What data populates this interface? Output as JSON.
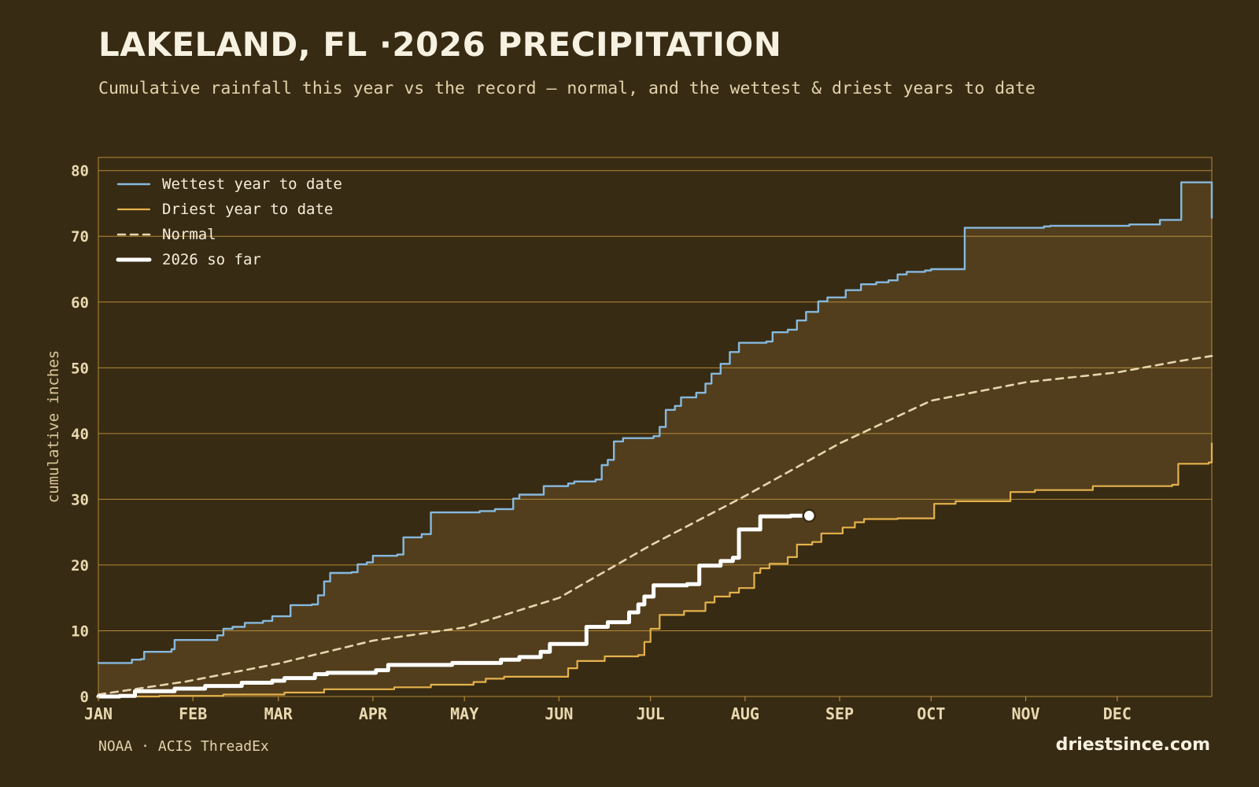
{
  "header": {
    "title": "LAKELAND, FL ·2026 PRECIPITATION",
    "subtitle": "Cumulative rainfall this year vs the record — normal, and the wettest & driest years to date"
  },
  "footer": {
    "source": "NOAA · ACIS ThreadEx",
    "site": "driestsince.com"
  },
  "colors": {
    "background": "#382b13",
    "band_fill": "#523e1d",
    "grid": "#b48a37",
    "wettest": "#86b9df",
    "driest": "#e5b24c",
    "normal": "#e6d6ad",
    "current": "#ffffff"
  },
  "chart_data": {
    "type": "line",
    "title": "LAKELAND, FL ·2026 PRECIPITATION",
    "xlabel": "",
    "ylabel": "cumulative inches",
    "x_unit": "day of year",
    "xlim": [
      1,
      366
    ],
    "ylim": [
      0,
      82
    ],
    "yticks": [
      0,
      10,
      20,
      30,
      40,
      50,
      60,
      70,
      80
    ],
    "xticks": [
      {
        "label": "JAN",
        "x": 1
      },
      {
        "label": "FEB",
        "x": 32
      },
      {
        "label": "MAR",
        "x": 60
      },
      {
        "label": "APR",
        "x": 91
      },
      {
        "label": "MAY",
        "x": 121
      },
      {
        "label": "JUN",
        "x": 152
      },
      {
        "label": "JUL",
        "x": 182
      },
      {
        "label": "AUG",
        "x": 213
      },
      {
        "label": "SEP",
        "x": 244
      },
      {
        "label": "OCT",
        "x": 274
      },
      {
        "label": "NOV",
        "x": 305
      },
      {
        "label": "DEC",
        "x": 335
      }
    ],
    "grid": true,
    "legend_position": "top-left",
    "shaded_band": "between driest and wettest year to date",
    "series": [
      {
        "name": "Wettest year to date",
        "style": "solid",
        "step": true,
        "points": [
          [
            1,
            5.1
          ],
          [
            11,
            5.1
          ],
          [
            12,
            5.6
          ],
          [
            15,
            5.7
          ],
          [
            16,
            6.8
          ],
          [
            23,
            6.8
          ],
          [
            25,
            7.2
          ],
          [
            26,
            8.6
          ],
          [
            36,
            8.6
          ],
          [
            40,
            9.3
          ],
          [
            42,
            10.3
          ],
          [
            45,
            10.6
          ],
          [
            49,
            11.2
          ],
          [
            55,
            11.5
          ],
          [
            58,
            12.2
          ],
          [
            64,
            13.9
          ],
          [
            71,
            14.0
          ],
          [
            73,
            15.4
          ],
          [
            75,
            17.5
          ],
          [
            77,
            18.8
          ],
          [
            84,
            18.9
          ],
          [
            86,
            20.1
          ],
          [
            89,
            20.4
          ],
          [
            91,
            21.4
          ],
          [
            99,
            21.6
          ],
          [
            101,
            24.2
          ],
          [
            107,
            24.7
          ],
          [
            110,
            28.0
          ],
          [
            126,
            28.2
          ],
          [
            131,
            28.5
          ],
          [
            137,
            30.1
          ],
          [
            139,
            30.7
          ],
          [
            147,
            32.0
          ],
          [
            155,
            32.4
          ],
          [
            157,
            32.7
          ],
          [
            164,
            33.0
          ],
          [
            166,
            35.2
          ],
          [
            168,
            36.0
          ],
          [
            170,
            38.8
          ],
          [
            173,
            39.3
          ],
          [
            183,
            39.6
          ],
          [
            185,
            41.0
          ],
          [
            187,
            43.6
          ],
          [
            190,
            44.2
          ],
          [
            192,
            45.5
          ],
          [
            197,
            46.2
          ],
          [
            200,
            47.6
          ],
          [
            202,
            49.1
          ],
          [
            205,
            50.6
          ],
          [
            208,
            52.4
          ],
          [
            211,
            53.8
          ],
          [
            220,
            54.0
          ],
          [
            222,
            55.4
          ],
          [
            227,
            55.8
          ],
          [
            230,
            57.2
          ],
          [
            233,
            58.5
          ],
          [
            237,
            60.1
          ],
          [
            240,
            60.7
          ],
          [
            246,
            61.8
          ],
          [
            251,
            62.7
          ],
          [
            256,
            63.0
          ],
          [
            260,
            63.3
          ],
          [
            263,
            64.2
          ],
          [
            266,
            64.6
          ],
          [
            272,
            64.8
          ],
          [
            274,
            65.0
          ],
          [
            285,
            71.3
          ],
          [
            311,
            71.5
          ],
          [
            313,
            71.6
          ],
          [
            339,
            71.8
          ],
          [
            349,
            72.5
          ],
          [
            356,
            78.2
          ],
          [
            365,
            78.2
          ],
          [
            366,
            72.8
          ]
        ]
      },
      {
        "name": "Driest year to date",
        "style": "solid",
        "step": true,
        "points": [
          [
            1,
            0.0
          ],
          [
            21,
            0.1
          ],
          [
            42,
            0.3
          ],
          [
            62,
            0.6
          ],
          [
            75,
            1.1
          ],
          [
            98,
            1.4
          ],
          [
            110,
            1.8
          ],
          [
            124,
            2.2
          ],
          [
            128,
            2.7
          ],
          [
            134,
            3.0
          ],
          [
            152,
            3.0
          ],
          [
            155,
            4.3
          ],
          [
            158,
            5.4
          ],
          [
            167,
            6.1
          ],
          [
            178,
            6.3
          ],
          [
            180,
            8.3
          ],
          [
            182,
            10.3
          ],
          [
            185,
            12.4
          ],
          [
            193,
            13.0
          ],
          [
            200,
            14.3
          ],
          [
            203,
            15.2
          ],
          [
            208,
            15.8
          ],
          [
            211,
            16.5
          ],
          [
            216,
            18.8
          ],
          [
            218,
            19.5
          ],
          [
            221,
            20.2
          ],
          [
            227,
            21.2
          ],
          [
            230,
            23.1
          ],
          [
            235,
            23.5
          ],
          [
            238,
            24.8
          ],
          [
            245,
            25.7
          ],
          [
            249,
            26.5
          ],
          [
            252,
            27.0
          ],
          [
            263,
            27.1
          ],
          [
            275,
            29.3
          ],
          [
            282,
            29.7
          ],
          [
            300,
            31.1
          ],
          [
            308,
            31.4
          ],
          [
            327,
            32.0
          ],
          [
            353,
            32.2
          ],
          [
            355,
            35.4
          ],
          [
            365,
            35.6
          ],
          [
            366,
            38.5
          ]
        ]
      },
      {
        "name": "Normal",
        "style": "dashed",
        "step": false,
        "points": [
          [
            1,
            0.3
          ],
          [
            30,
            2.3
          ],
          [
            60,
            5.0
          ],
          [
            91,
            8.5
          ],
          [
            121,
            10.5
          ],
          [
            152,
            15.0
          ],
          [
            182,
            23.0
          ],
          [
            213,
            30.5
          ],
          [
            244,
            38.5
          ],
          [
            274,
            45.0
          ],
          [
            305,
            47.8
          ],
          [
            335,
            49.3
          ],
          [
            355,
            51.0
          ],
          [
            366,
            51.8
          ]
        ]
      },
      {
        "name": "2026 so far",
        "style": "solid",
        "step": true,
        "points": [
          [
            1,
            0.0
          ],
          [
            8,
            0.1
          ],
          [
            13,
            0.8
          ],
          [
            26,
            1.2
          ],
          [
            36,
            1.6
          ],
          [
            48,
            2.1
          ],
          [
            58,
            2.4
          ],
          [
            62,
            2.8
          ],
          [
            72,
            3.4
          ],
          [
            76,
            3.6
          ],
          [
            92,
            4.0
          ],
          [
            96,
            4.8
          ],
          [
            117,
            5.1
          ],
          [
            133,
            5.6
          ],
          [
            139,
            6.0
          ],
          [
            146,
            6.8
          ],
          [
            149,
            8.0
          ],
          [
            161,
            10.6
          ],
          [
            168,
            11.3
          ],
          [
            175,
            12.8
          ],
          [
            178,
            14.0
          ],
          [
            180,
            15.2
          ],
          [
            183,
            16.9
          ],
          [
            194,
            17.1
          ],
          [
            198,
            19.9
          ],
          [
            205,
            20.6
          ],
          [
            209,
            21.1
          ],
          [
            211,
            25.4
          ],
          [
            218,
            27.4
          ],
          [
            228,
            27.5
          ],
          [
            234,
            27.5
          ]
        ]
      }
    ]
  }
}
